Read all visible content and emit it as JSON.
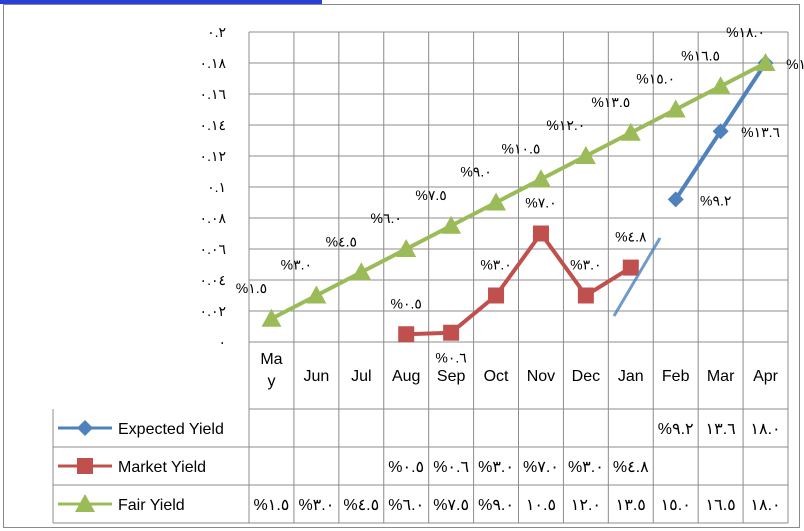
{
  "chart_data": {
    "type": "line",
    "categories": [
      "May",
      "Jun",
      "Jul",
      "Aug",
      "Sep",
      "Oct",
      "Nov",
      "Dec",
      "Jan",
      "Feb",
      "Mar",
      "Apr"
    ],
    "category_display": [
      "Ma\ny",
      "Jun",
      "Jul",
      "Aug",
      "Sep",
      "Oct",
      "Nov",
      "Dec",
      "Jan",
      "Feb",
      "Mar",
      "Apr"
    ],
    "ylim": [
      0,
      0.2
    ],
    "y_ticks": [
      0,
      0.02,
      0.04,
      0.06,
      0.08,
      0.1,
      0.12,
      0.14,
      0.16,
      0.18,
      0.2
    ],
    "y_tick_labels": [
      "٠",
      "٠.٠٢",
      "٠.٠٤",
      "٠.٠٦",
      "٠.٠٨",
      "٠.١",
      "٠.١٢",
      "٠.١٤",
      "٠.١٦",
      "٠.١٨",
      "٠.٢"
    ],
    "grid": true,
    "legend_placement": "data table below chart",
    "series": [
      {
        "name": "Expected Yield",
        "color": "#4f81bd",
        "marker": "diamond",
        "values": [
          null,
          null,
          null,
          null,
          null,
          null,
          null,
          null,
          null,
          0.092,
          0.136,
          0.18
        ],
        "labels": [
          "",
          "",
          "",
          "",
          "",
          "",
          "",
          "",
          "",
          "%٩.٢",
          "%١٣.٦",
          "%١٨.٠"
        ]
      },
      {
        "name": "Market Yield",
        "color": "#c0504d",
        "marker": "square",
        "values": [
          null,
          null,
          null,
          0.005,
          0.006,
          0.03,
          0.07,
          0.03,
          0.048,
          null,
          null,
          null
        ],
        "labels": [
          "",
          "",
          "",
          "%٠.٥",
          "%٠.٦",
          "%٣.٠",
          "%٧.٠",
          "%٣.٠",
          "%٤.٨",
          "",
          "",
          ""
        ]
      },
      {
        "name": "Fair Yield",
        "color": "#9bbb59",
        "marker": "triangle",
        "values": [
          0.015,
          0.03,
          0.045,
          0.06,
          0.075,
          0.09,
          0.105,
          0.12,
          0.135,
          0.15,
          0.165,
          0.18
        ],
        "labels": [
          "%١.٥",
          "%٣.٠",
          "%٤.٥",
          "%٦.٠",
          "%٧.٥",
          "%٩.٠",
          "%١٠.٥",
          "%١٢.٠",
          "%١٣.٥",
          "%١٥.٠",
          "%١٦.٥",
          "%١٨.٠"
        ],
        "table_values": [
          "%١.٥",
          "%٣.٠",
          "%٤.٥",
          "%٦.٠",
          "%٧.٥",
          "%٩.٠",
          "١٠.٥",
          "١٢.٠",
          "١٣.٥",
          "١٥.٠",
          "١٦.٥",
          "١٨.٠"
        ]
      }
    ],
    "expected_table_values": [
      "",
      "",
      "",
      "",
      "",
      "",
      "",
      "",
      "",
      "%٩.٢",
      "١٣.٦",
      "١٨.٠"
    ],
    "market_table_values": [
      "",
      "",
      "",
      "%٠.٥",
      "%٠.٦",
      "%٣.٠",
      "%٧.٠",
      "%٣.٠",
      "%٤.٨",
      "",
      "",
      ""
    ]
  }
}
